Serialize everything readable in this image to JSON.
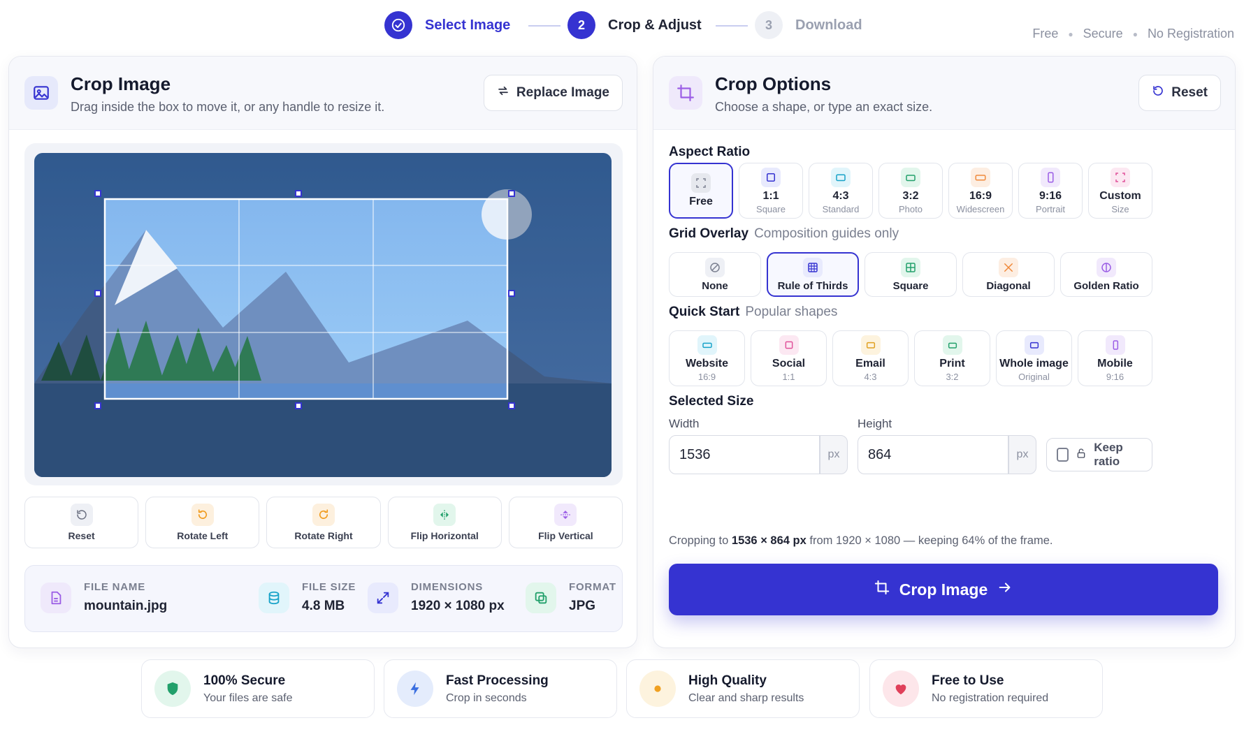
{
  "stepper": {
    "steps": [
      {
        "num": "",
        "label": "Select Image",
        "state": "done"
      },
      {
        "num": "2",
        "label": "Crop & Adjust",
        "state": "active"
      },
      {
        "num": "3",
        "label": "Download",
        "state": "todo"
      }
    ],
    "meta": [
      "Free",
      "Secure",
      "No Registration"
    ]
  },
  "left": {
    "title": "Crop Image",
    "subtitle": "Drag inside the box to move it, or any handle to resize it.",
    "replace_label": "Replace Image",
    "tools": [
      {
        "label": "Reset",
        "icon": "reset-icon"
      },
      {
        "label": "Rotate Left",
        "icon": "rotate-left-icon"
      },
      {
        "label": "Rotate Right",
        "icon": "rotate-right-icon"
      },
      {
        "label": "Flip Horizontal",
        "icon": "flip-horizontal-icon"
      },
      {
        "label": "Flip Vertical",
        "icon": "flip-vertical-icon"
      }
    ],
    "file": {
      "name_key": "FILE NAME",
      "name": "mountain.jpg",
      "size_key": "FILE SIZE",
      "size": "4.8 MB",
      "dim_key": "DIMENSIONS",
      "dim": "1920 × 1080 px",
      "format_key": "FORMAT",
      "format": "JPG"
    }
  },
  "right": {
    "title": "Crop Options",
    "subtitle": "Choose a shape, or type an exact size.",
    "reset_label": "Reset",
    "aspect_title": "Aspect Ratio",
    "aspect": [
      {
        "label": "Free",
        "sub": "",
        "color": "#7b8090",
        "bg": "#eef0f5",
        "selected": true
      },
      {
        "label": "1:1",
        "sub": "Square",
        "color": "#3533d1",
        "bg": "#e8eafd"
      },
      {
        "label": "4:3",
        "sub": "Standard",
        "color": "#17a2c8",
        "bg": "#e1f5fb"
      },
      {
        "label": "3:2",
        "sub": "Photo",
        "color": "#22a06b",
        "bg": "#e2f6ec"
      },
      {
        "label": "16:9",
        "sub": "Widescreen",
        "color": "#f08a3c",
        "bg": "#fdeee2"
      },
      {
        "label": "9:16",
        "sub": "Portrait",
        "color": "#9b5de5",
        "bg": "#f1e9fc"
      },
      {
        "label": "Custom",
        "sub": "Size",
        "color": "#e0509a",
        "bg": "#fce8f2"
      }
    ],
    "grid_title": "Grid Overlay",
    "grid_sub": "Composition guides only",
    "grid": [
      {
        "label": "None",
        "color": "#7b8090",
        "bg": "#eef0f5"
      },
      {
        "label": "Rule of Thirds",
        "color": "#3533d1",
        "bg": "#e8eafd",
        "selected": true
      },
      {
        "label": "Square",
        "color": "#22a06b",
        "bg": "#e2f6ec"
      },
      {
        "label": "Diagonal",
        "color": "#f08a3c",
        "bg": "#fdeee2"
      },
      {
        "label": "Golden Ratio",
        "color": "#9b5de5",
        "bg": "#f1e9fc"
      }
    ],
    "quick_title": "Quick Start",
    "quick_sub": "Popular shapes",
    "quick": [
      {
        "label": "Website",
        "sub": "16:9",
        "color": "#17a2c8",
        "bg": "#e1f5fb"
      },
      {
        "label": "Social",
        "sub": "1:1",
        "color": "#e0509a",
        "bg": "#fce8f2"
      },
      {
        "label": "Email",
        "sub": "4:3",
        "color": "#e0a020",
        "bg": "#fdf3de"
      },
      {
        "label": "Print",
        "sub": "3:2",
        "color": "#22a06b",
        "bg": "#e2f6ec"
      },
      {
        "label": "Whole image",
        "sub": "Original",
        "color": "#3533d1",
        "bg": "#e8eafd"
      },
      {
        "label": "Mobile",
        "sub": "9:16",
        "color": "#9b5de5",
        "bg": "#f1e9fc"
      }
    ],
    "size_title": "Selected Size",
    "width_label": "Width",
    "width_value": "1536",
    "unit": "px",
    "height_label": "Height",
    "height_value": "864",
    "keep_label": "Keep ratio",
    "summary_pre": "Cropping to",
    "summary_bold": "1536 × 864 px",
    "summary_post": "from 1920 × 1080 — keeping 64% of the frame.",
    "crop_label": "Crop Image"
  },
  "features": [
    {
      "title": "100% Secure",
      "sub": "Your files are safe",
      "color": "#22a06b",
      "bg": "#e2f6ec"
    },
    {
      "title": "Fast Processing",
      "sub": "Crop in seconds",
      "color": "#3b6fe0",
      "bg": "#e4ecfc"
    },
    {
      "title": "High Quality",
      "sub": "Clear and sharp results",
      "color": "#f0a020",
      "bg": "#fdf3de"
    },
    {
      "title": "Free to Use",
      "sub": "No registration required",
      "color": "#e0405a",
      "bg": "#fde6ea"
    }
  ],
  "colors": {
    "accent": "#3533d1"
  }
}
